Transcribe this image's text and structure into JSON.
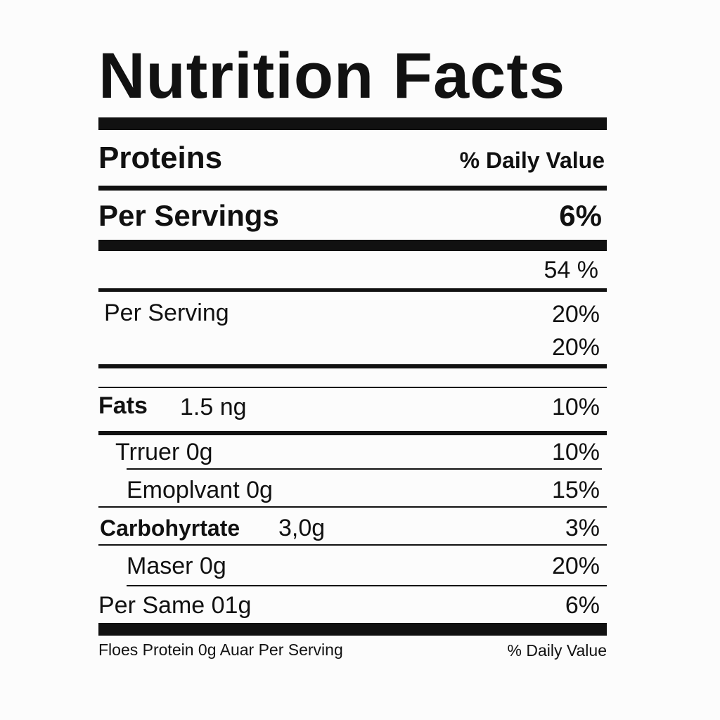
{
  "title": "Nutrition Facts",
  "header": {
    "left": "Proteins",
    "right": "% Daily Value"
  },
  "serving_main": {
    "label": "Per Servings",
    "value": "6%"
  },
  "rows": {
    "r1_value": "54 %",
    "r2_label": "Per Serving",
    "r2_value_a": "20%",
    "r2_value_b": "20%",
    "fats_label": "Fats",
    "fats_amount": "1.5 ng",
    "fats_value": "10%",
    "trruer_label": "Trruer 0g",
    "trruer_value": "10%",
    "emop_label": "Emoplvant 0g",
    "emop_value": "15%",
    "carb_label": "Carbohyrtate",
    "carb_amount": "3,0g",
    "carb_value": "3%",
    "maser_label": "Maser 0g",
    "maser_value": "20%",
    "same_label": "Per Same 01g",
    "same_value": "6%"
  },
  "footer": {
    "left": "Floes Protein 0g Auar Per Serving",
    "right": "% Daily Value"
  }
}
